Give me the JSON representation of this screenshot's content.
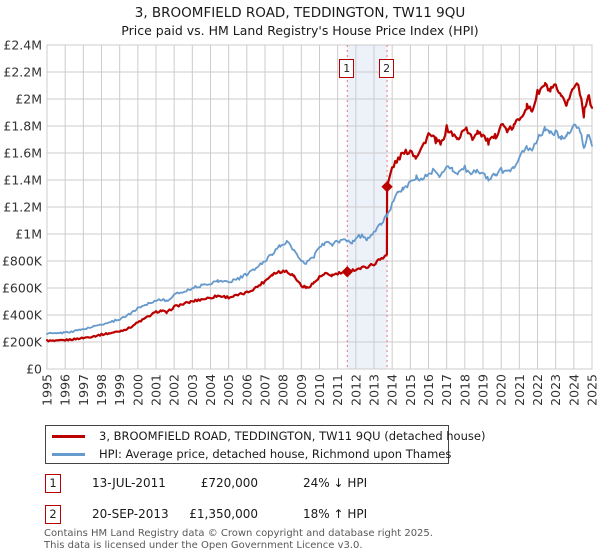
{
  "title": {
    "line1": "3, BROOMFIELD ROAD, TEDDINGTON, TW11 9QU",
    "line2": "Price paid vs. HM Land Registry's House Price Index (HPI)"
  },
  "colors": {
    "property": "#bb0000",
    "hpi": "#6699cc",
    "grid": "#cccccc",
    "band": "#edf1fa",
    "event_line": "#e87878",
    "axis_text": "#333333",
    "footer_text": "#595959"
  },
  "chart_data": {
    "type": "line",
    "title": "Price paid vs. HM Land Registry's House Price Index (HPI)",
    "xlabel": "",
    "ylabel": "",
    "x_axis": {
      "range": [
        1995,
        2025
      ],
      "ticks": [
        1995,
        1996,
        1997,
        1998,
        1999,
        2000,
        2001,
        2002,
        2003,
        2004,
        2005,
        2006,
        2007,
        2008,
        2009,
        2010,
        2011,
        2012,
        2013,
        2014,
        2015,
        2016,
        2017,
        2018,
        2019,
        2020,
        2021,
        2022,
        2023,
        2024,
        2025
      ]
    },
    "y_axis": {
      "range": [
        0,
        2400000
      ],
      "tick_values": [
        0,
        200000,
        400000,
        600000,
        800000,
        1000000,
        1200000,
        1400000,
        1600000,
        1800000,
        2000000,
        2200000,
        2400000
      ],
      "tick_labels": [
        "£0",
        "£200K",
        "£400K",
        "£600K",
        "£800K",
        "£1M",
        "£1.2M",
        "£1.4M",
        "£1.6M",
        "£1.8M",
        "£2M",
        "£2.2M",
        "£2.4M"
      ]
    },
    "grid": true,
    "legend_position": "bottom",
    "series": [
      {
        "name": "3, BROOMFIELD ROAD, TEDDINGTON, TW11 9QU (detached house)",
        "color": "#bb0000",
        "points": [
          [
            1995,
            210000
          ],
          [
            1995.5,
            207000
          ],
          [
            1996,
            214000
          ],
          [
            1996.5,
            221000
          ],
          [
            1997,
            230000
          ],
          [
            1997.5,
            241000
          ],
          [
            1998,
            255000
          ],
          [
            1998.5,
            266000
          ],
          [
            1999,
            280000
          ],
          [
            1999.5,
            302000
          ],
          [
            2000,
            345000
          ],
          [
            2000.5,
            382000
          ],
          [
            2001,
            422000
          ],
          [
            2001.3,
            432000
          ],
          [
            2001.6,
            416000
          ],
          [
            2002,
            462000
          ],
          [
            2002.5,
            481000
          ],
          [
            2003,
            501000
          ],
          [
            2003.5,
            516000
          ],
          [
            2004,
            528000
          ],
          [
            2004.4,
            543000
          ],
          [
            2005,
            531000
          ],
          [
            2005.5,
            546000
          ],
          [
            2006,
            566000
          ],
          [
            2006.5,
            603000
          ],
          [
            2007,
            652000
          ],
          [
            2007.4,
            703000
          ],
          [
            2007.8,
            722000
          ],
          [
            2008.2,
            726000
          ],
          [
            2008.6,
            688000
          ],
          [
            2009,
            617000
          ],
          [
            2009.3,
            601000
          ],
          [
            2009.7,
            639000
          ],
          [
            2010,
            679000
          ],
          [
            2010.3,
            703000
          ],
          [
            2010.7,
            694000
          ],
          [
            2011,
            706000
          ],
          [
            2011.53,
            720000
          ],
          [
            2012,
            739000
          ],
          [
            2012.5,
            753000
          ],
          [
            2013,
            777000
          ],
          [
            2013.4,
            821000
          ],
          [
            2013.71,
            848000
          ],
          [
            2013.72,
            1350000
          ],
          [
            2014,
            1492000
          ],
          [
            2014.5,
            1586000
          ],
          [
            2015,
            1621000
          ],
          [
            2015.3,
            1573000
          ],
          [
            2015.7,
            1656000
          ],
          [
            2016,
            1739000
          ],
          [
            2016.4,
            1693000
          ],
          [
            2016.7,
            1666000
          ],
          [
            2017,
            1783000
          ],
          [
            2017.3,
            1743000
          ],
          [
            2017.6,
            1699000
          ],
          [
            2018,
            1789000
          ],
          [
            2018.4,
            1705000
          ],
          [
            2018.7,
            1765000
          ],
          [
            2019,
            1733000
          ],
          [
            2019.3,
            1677000
          ],
          [
            2019.7,
            1723000
          ],
          [
            2020,
            1813000
          ],
          [
            2020.4,
            1763000
          ],
          [
            2020.7,
            1799000
          ],
          [
            2021,
            1857000
          ],
          [
            2021.4,
            1943000
          ],
          [
            2021.7,
            1913000
          ],
          [
            2022,
            2043000
          ],
          [
            2022.4,
            2103000
          ],
          [
            2022.7,
            2059000
          ],
          [
            2023,
            2089000
          ],
          [
            2023.3,
            2005000
          ],
          [
            2023.6,
            1963000
          ],
          [
            2024,
            2089000
          ],
          [
            2024.25,
            2123000
          ],
          [
            2024.55,
            1887000
          ],
          [
            2024.8,
            2045000
          ],
          [
            2025,
            1919000
          ]
        ]
      },
      {
        "name": "HPI: Average price, detached house, Richmond upon Thames",
        "color": "#6699cc",
        "points": [
          [
            1995,
            265000
          ],
          [
            1995.5,
            262000
          ],
          [
            1996,
            271000
          ],
          [
            1996.5,
            281000
          ],
          [
            1997,
            295000
          ],
          [
            1997.5,
            312000
          ],
          [
            1998,
            331000
          ],
          [
            1998.5,
            347000
          ],
          [
            1999,
            371000
          ],
          [
            1999.5,
            402000
          ],
          [
            2000,
            451000
          ],
          [
            2000.5,
            482000
          ],
          [
            2001,
            507000
          ],
          [
            2001.3,
            517000
          ],
          [
            2001.6,
            501000
          ],
          [
            2002,
            551000
          ],
          [
            2002.5,
            572000
          ],
          [
            2003,
            601000
          ],
          [
            2003.5,
            617000
          ],
          [
            2004,
            636000
          ],
          [
            2004.4,
            652000
          ],
          [
            2005,
            646000
          ],
          [
            2005.5,
            666000
          ],
          [
            2006,
            701000
          ],
          [
            2006.5,
            746000
          ],
          [
            2007,
            801000
          ],
          [
            2007.4,
            856000
          ],
          [
            2007.8,
            906000
          ],
          [
            2008.2,
            944000
          ],
          [
            2008.6,
            878000
          ],
          [
            2009,
            792000
          ],
          [
            2009.25,
            781000
          ],
          [
            2009.7,
            836000
          ],
          [
            2010,
            901000
          ],
          [
            2010.3,
            936000
          ],
          [
            2010.7,
            921000
          ],
          [
            2011,
            944000
          ],
          [
            2011.5,
            952000
          ],
          [
            2011.8,
            938000
          ],
          [
            2012,
            972000
          ],
          [
            2012.3,
            988000
          ],
          [
            2012.6,
            964000
          ],
          [
            2013,
            1008000
          ],
          [
            2013.4,
            1078000
          ],
          [
            2013.72,
            1142000
          ],
          [
            2014,
            1218000
          ],
          [
            2014.3,
            1298000
          ],
          [
            2014.6,
            1338000
          ],
          [
            2015,
            1378000
          ],
          [
            2015.3,
            1421000
          ],
          [
            2015.6,
            1398000
          ],
          [
            2016,
            1448000
          ],
          [
            2016.3,
            1468000
          ],
          [
            2016.6,
            1421000
          ],
          [
            2017,
            1508000
          ],
          [
            2017.3,
            1478000
          ],
          [
            2017.6,
            1452000
          ],
          [
            2018,
            1488000
          ],
          [
            2018.3,
            1438000
          ],
          [
            2018.6,
            1468000
          ],
          [
            2019,
            1452000
          ],
          [
            2019.3,
            1408000
          ],
          [
            2019.7,
            1441000
          ],
          [
            2020,
            1478000
          ],
          [
            2020.3,
            1452000
          ],
          [
            2020.7,
            1502000
          ],
          [
            2021,
            1568000
          ],
          [
            2021.4,
            1642000
          ],
          [
            2021.7,
            1612000
          ],
          [
            2022,
            1702000
          ],
          [
            2022.4,
            1782000
          ],
          [
            2022.7,
            1742000
          ],
          [
            2023,
            1758000
          ],
          [
            2023.3,
            1712000
          ],
          [
            2023.6,
            1732000
          ],
          [
            2024,
            1788000
          ],
          [
            2024.3,
            1802000
          ],
          [
            2024.55,
            1642000
          ],
          [
            2024.8,
            1742000
          ],
          [
            2025,
            1652000
          ]
        ]
      }
    ],
    "events": [
      {
        "label": "1",
        "x": 2011.53,
        "price": 720000
      },
      {
        "label": "2",
        "x": 2013.72,
        "price": 1350000
      }
    ]
  },
  "legend": {
    "items": [
      {
        "label": "3, BROOMFIELD ROAD, TEDDINGTON, TW11 9QU (detached house)",
        "color": "#bb0000"
      },
      {
        "label": "HPI: Average price, detached house, Richmond upon Thames",
        "color": "#6699cc"
      }
    ]
  },
  "annotations": [
    {
      "num": "1",
      "date": "13-JUL-2011",
      "price": "£720,000",
      "delta": "24% ↓ HPI"
    },
    {
      "num": "2",
      "date": "20-SEP-2013",
      "price": "£1,350,000",
      "delta": "18% ↑ HPI"
    }
  ],
  "footer": {
    "line1": "Contains HM Land Registry data © Crown copyright and database right 2025.",
    "line2": "This data is licensed under the Open Government Licence v3.0."
  }
}
